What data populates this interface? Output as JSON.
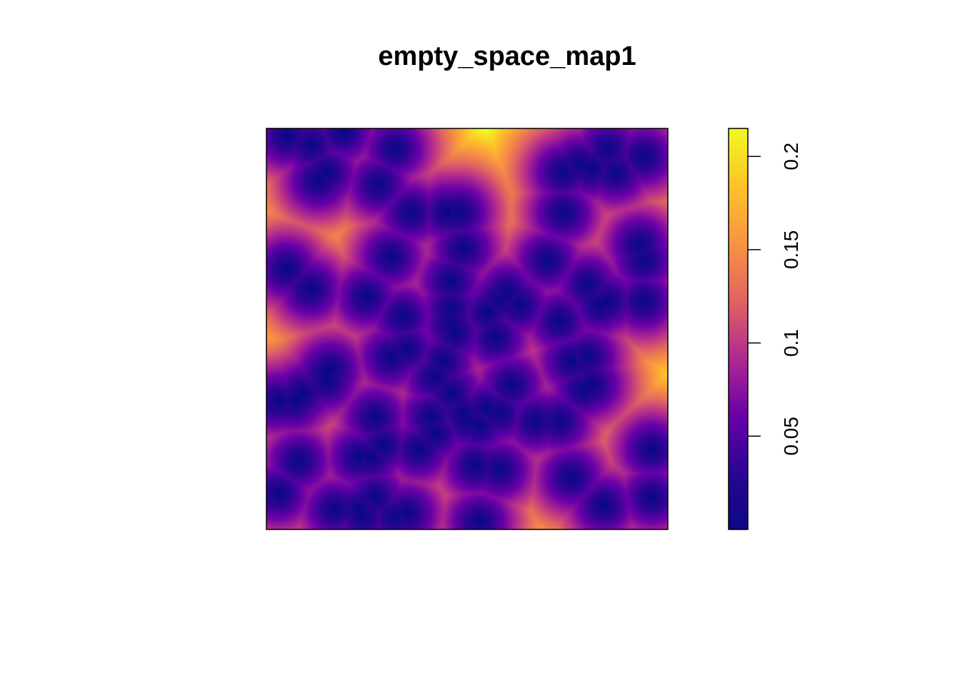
{
  "chart_data": {
    "type": "heatmap",
    "title": "empty_space_map1",
    "xlabel": "",
    "ylabel": "",
    "xlim": [
      0,
      1
    ],
    "ylim": [
      0,
      1
    ],
    "grid": false,
    "value_range": [
      0,
      0.215
    ],
    "legend": {
      "placement": "right",
      "ticks": [
        0.05,
        0.1,
        0.15,
        0.2
      ],
      "tick_labels": [
        "0.05",
        "0.1",
        "0.15",
        "0.2"
      ]
    },
    "colormap": [
      "#0d0887",
      "#2a0593",
      "#6a00a8",
      "#b12a90",
      "#e16462",
      "#f89441",
      "#fdc328",
      "#f0f921"
    ],
    "points": [
      [
        0.05,
        0.98
      ],
      [
        0.11,
        0.96
      ],
      [
        0.19,
        0.99
      ],
      [
        0.32,
        0.95
      ],
      [
        0.13,
        0.87
      ],
      [
        0.15,
        0.89
      ],
      [
        0.28,
        0.86
      ],
      [
        0.36,
        0.79
      ],
      [
        0.45,
        0.79
      ],
      [
        0.48,
        0.79
      ],
      [
        0.74,
        0.89
      ],
      [
        0.78,
        0.91
      ],
      [
        0.81,
        0.9
      ],
      [
        0.85,
        0.95
      ],
      [
        0.87,
        0.89
      ],
      [
        0.94,
        0.93
      ],
      [
        0.74,
        0.79
      ],
      [
        0.05,
        0.65
      ],
      [
        0.11,
        0.6
      ],
      [
        0.31,
        0.68
      ],
      [
        0.49,
        0.7
      ],
      [
        0.25,
        0.58
      ],
      [
        0.46,
        0.62
      ],
      [
        0.46,
        0.55
      ],
      [
        0.46,
        0.51
      ],
      [
        0.47,
        0.49
      ],
      [
        0.58,
        0.57
      ],
      [
        0.6,
        0.59
      ],
      [
        0.63,
        0.56
      ],
      [
        0.55,
        0.54
      ],
      [
        0.57,
        0.48
      ],
      [
        0.7,
        0.67
      ],
      [
        0.73,
        0.52
      ],
      [
        0.8,
        0.61
      ],
      [
        0.83,
        0.56
      ],
      [
        0.85,
        0.57
      ],
      [
        0.93,
        0.71
      ],
      [
        0.94,
        0.67
      ],
      [
        0.94,
        0.57
      ],
      [
        0.34,
        0.53
      ],
      [
        0.35,
        0.45
      ],
      [
        0.31,
        0.43
      ],
      [
        0.44,
        0.42
      ],
      [
        0.42,
        0.38
      ],
      [
        0.46,
        0.34
      ],
      [
        0.41,
        0.28
      ],
      [
        0.16,
        0.4
      ],
      [
        0.15,
        0.39
      ],
      [
        0.15,
        0.37
      ],
      [
        0.09,
        0.34
      ],
      [
        0.07,
        0.32
      ],
      [
        0.03,
        0.32
      ],
      [
        0.76,
        0.42
      ],
      [
        0.8,
        0.43
      ],
      [
        0.81,
        0.36
      ],
      [
        0.79,
        0.35
      ],
      [
        0.61,
        0.36
      ],
      [
        0.58,
        0.29
      ],
      [
        0.53,
        0.26
      ],
      [
        0.5,
        0.27
      ],
      [
        0.49,
        0.29
      ],
      [
        0.55,
        0.3
      ],
      [
        0.42,
        0.24
      ],
      [
        0.38,
        0.2
      ],
      [
        0.27,
        0.28
      ],
      [
        0.67,
        0.27
      ],
      [
        0.73,
        0.27
      ],
      [
        0.29,
        0.21
      ],
      [
        0.26,
        0.18
      ],
      [
        0.23,
        0.18
      ],
      [
        0.08,
        0.17
      ],
      [
        0.52,
        0.16
      ],
      [
        0.58,
        0.15
      ],
      [
        0.76,
        0.13
      ],
      [
        0.96,
        0.2
      ],
      [
        0.03,
        0.09
      ],
      [
        0.17,
        0.05
      ],
      [
        0.23,
        0.05
      ],
      [
        0.24,
        0.03
      ],
      [
        0.27,
        0.08
      ],
      [
        0.32,
        0.03
      ],
      [
        0.35,
        0.04
      ],
      [
        0.53,
        0.02
      ],
      [
        0.84,
        0.06
      ],
      [
        0.96,
        0.08
      ]
    ]
  }
}
